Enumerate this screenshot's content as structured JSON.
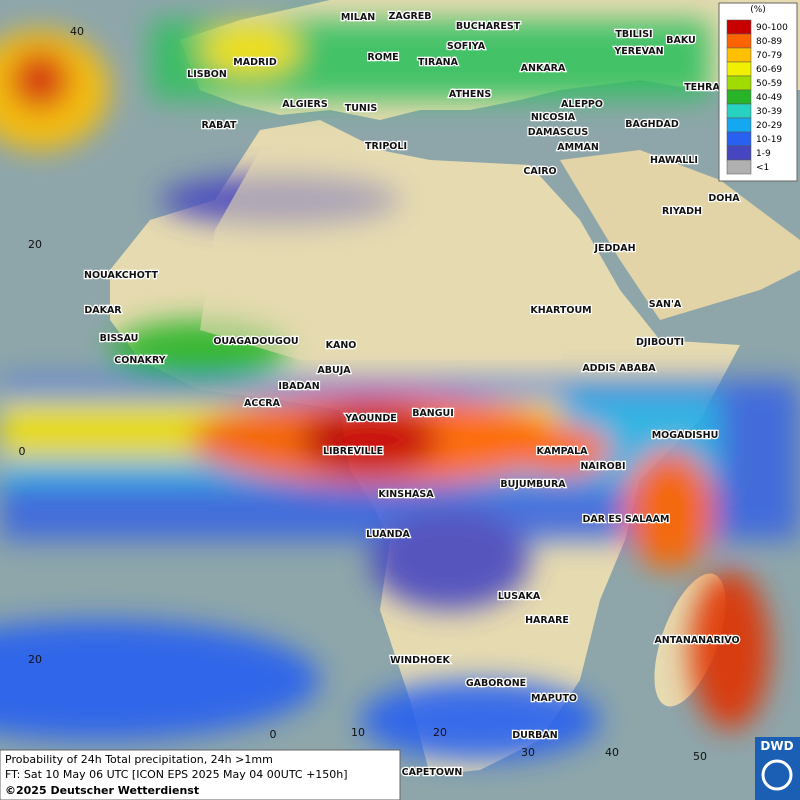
{
  "map": {
    "cities": [
      "MILAN",
      "ZAGREB",
      "BUCHAREST",
      "TBILISI",
      "BAKU",
      "MADRID",
      "ROME",
      "SOFIYA",
      "YEREVAN",
      "LISBON",
      "TIRANA",
      "ANKARA",
      "TEHRA",
      "ATHENS",
      "ALGIERS",
      "TUNIS",
      "ALEPPO",
      "RABAT",
      "NICOSIA",
      "BAGHDAD",
      "DAMASCUS",
      "TRIPOLI",
      "AMMAN",
      "HAWALLI",
      "CAIRO",
      "DOHA",
      "RIYADH",
      "JEDDAH",
      "NOUAKCHOTT",
      "SAN'A",
      "DAKAR",
      "KHARTOUM",
      "BISSAU",
      "OUAGADOUGOU",
      "KANO",
      "DJIBOUTI",
      "CONAKRY",
      "ABUJA",
      "ADDIS ABABA",
      "IBADAN",
      "ACCRA",
      "BANGUI",
      "YAOUNDE",
      "MOGADISHU",
      "LIBREVILLE",
      "KAMPALA",
      "NAIROBI",
      "BUJUMBURA",
      "KINSHASA",
      "DAR ES SALAAM",
      "LUANDA",
      "LUSAKA",
      "HARARE",
      "ANTANANARIVO",
      "WINDHOEK",
      "GABORONE",
      "MAPUTO",
      "DURBAN",
      "CAPETOWN"
    ],
    "lat_labels": [
      "40",
      "20",
      "0",
      "20"
    ],
    "lon_labels": [
      "0",
      "10",
      "20",
      "30",
      "40",
      "50"
    ]
  },
  "legend": {
    "unit": "(%)",
    "items": [
      {
        "label": "90-100",
        "color": "#c80000"
      },
      {
        "label": "80-89",
        "color": "#ff6400"
      },
      {
        "label": "70-79",
        "color": "#ffc000"
      },
      {
        "label": "60-69",
        "color": "#f0f000"
      },
      {
        "label": "50-59",
        "color": "#a0dc00"
      },
      {
        "label": "40-49",
        "color": "#28b428"
      },
      {
        "label": "30-39",
        "color": "#28d2c0"
      },
      {
        "label": "20-29",
        "color": "#14a8f0"
      },
      {
        "label": "10-19",
        "color": "#2860f0"
      },
      {
        "label": "1-9",
        "color": "#4646c0"
      },
      {
        "label": "<1",
        "color": "#b0b0b0"
      }
    ]
  },
  "footer": {
    "line1": "Probability of 24h Total precipitation, 24h >1mm",
    "line2": "FT: Sat 10 May 06 UTC [ICON EPS 2025 May 04 00UTC +150h]",
    "line3": "©2025 Deutscher Wetterdienst"
  },
  "logo": "DWD"
}
